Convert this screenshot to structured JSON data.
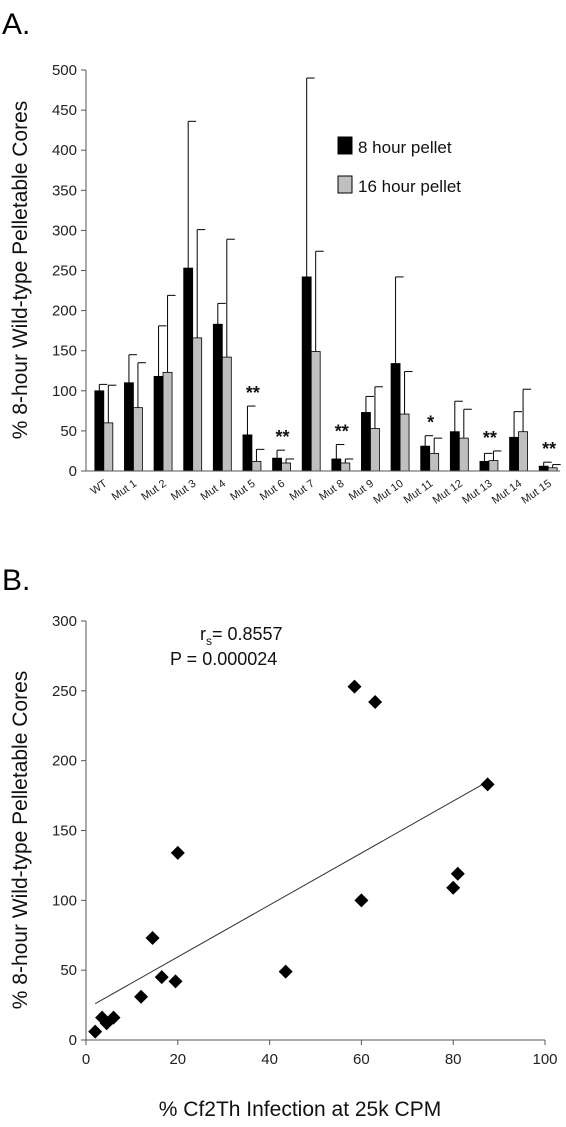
{
  "chart_data": [
    {
      "type": "bar",
      "panel": "A.",
      "ylabel": "% 8-hour Wild-type Pelletable Cores",
      "ylim": [
        0,
        500
      ],
      "yticks": [
        0,
        50,
        100,
        150,
        200,
        250,
        300,
        350,
        400,
        450,
        500
      ],
      "categories": [
        "WT",
        "Mut 1",
        "Mut 2",
        "Mut 3",
        "Mut 4",
        "Mut 5",
        "Mut 6",
        "Mut 7",
        "Mut 8",
        "Mut 9",
        "Mut 10",
        "Mut 11",
        "Mut 12",
        "Mut 13",
        "Mut 14",
        "Mut 15"
      ],
      "series": [
        {
          "name": "8 hour pellet",
          "color": "#000000",
          "values": [
            100,
            110,
            118,
            253,
            183,
            45,
            16,
            242,
            15,
            73,
            134,
            31,
            49,
            12,
            42,
            6
          ],
          "errors": [
            8,
            35,
            63,
            183,
            26,
            36,
            10,
            248,
            18,
            20,
            108,
            13,
            38,
            10,
            32,
            5
          ]
        },
        {
          "name": "16 hour pellet",
          "color": "#bfbfbf",
          "values": [
            60,
            79,
            123,
            166,
            142,
            12,
            10,
            149,
            10,
            53,
            71,
            22,
            41,
            13,
            49,
            4
          ],
          "errors": [
            47,
            56,
            96,
            135,
            147,
            15,
            5,
            125,
            5,
            52,
            53,
            19,
            36,
            12,
            53,
            4
          ]
        }
      ],
      "significance": [
        "",
        "",
        "",
        "",
        "",
        "**",
        "**",
        "",
        "**",
        "",
        "",
        "*",
        "",
        "**",
        "",
        "**"
      ],
      "legend_position": "top-right"
    },
    {
      "type": "scatter",
      "panel": "B.",
      "xlabel": "% Cf2Th Infection at 25k CPM",
      "ylabel": "% 8-hour Wild-type Pelletable Cores",
      "xlim": [
        0,
        100
      ],
      "ylim": [
        0,
        300
      ],
      "xticks": [
        0,
        20,
        40,
        60,
        80,
        100
      ],
      "yticks": [
        0,
        50,
        100,
        150,
        200,
        250,
        300
      ],
      "points": [
        {
          "x": 2,
          "y": 6
        },
        {
          "x": 3.5,
          "y": 16
        },
        {
          "x": 4.5,
          "y": 12
        },
        {
          "x": 6,
          "y": 16
        },
        {
          "x": 12,
          "y": 31
        },
        {
          "x": 14.5,
          "y": 73
        },
        {
          "x": 16.5,
          "y": 45
        },
        {
          "x": 19.5,
          "y": 42
        },
        {
          "x": 20,
          "y": 134
        },
        {
          "x": 43.5,
          "y": 49
        },
        {
          "x": 58.5,
          "y": 253
        },
        {
          "x": 60,
          "y": 100
        },
        {
          "x": 63,
          "y": 242
        },
        {
          "x": 80,
          "y": 109
        },
        {
          "x": 81,
          "y": 119
        },
        {
          "x": 87.5,
          "y": 183
        }
      ],
      "fit_line": {
        "x1": 2,
        "y1": 26,
        "x2": 87.5,
        "y2": 185
      },
      "stats": {
        "rs_label": "r",
        "rs_sub": "s",
        "rs_value": "= 0.8557",
        "p": "P = 0.000024"
      }
    }
  ]
}
